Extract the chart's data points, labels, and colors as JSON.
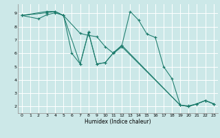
{
  "xlabel": "Humidex (Indice chaleur)",
  "xlim": [
    -0.5,
    23.5
  ],
  "ylim": [
    1.5,
    9.7
  ],
  "yticks": [
    2,
    3,
    4,
    5,
    6,
    7,
    8,
    9
  ],
  "xticks": [
    0,
    1,
    2,
    3,
    4,
    5,
    6,
    7,
    8,
    9,
    10,
    11,
    12,
    13,
    14,
    15,
    16,
    17,
    18,
    19,
    20,
    21,
    22,
    23
  ],
  "bg_color": "#cce8e8",
  "grid_color": "#ffffff",
  "line_color": "#1a7a6a",
  "line1_x": [
    0,
    2,
    3,
    4,
    5,
    7,
    8,
    9,
    10,
    11,
    12,
    19,
    20,
    21,
    22,
    23
  ],
  "line1_y": [
    8.85,
    8.6,
    8.9,
    9.05,
    8.85,
    7.5,
    7.35,
    7.25,
    6.5,
    6.0,
    6.5,
    2.1,
    2.05,
    2.2,
    2.45,
    2.2
  ],
  "line2_x": [
    0,
    3,
    4,
    5,
    6,
    7,
    8,
    9,
    10,
    11,
    12,
    13,
    14,
    15,
    16,
    17,
    18,
    19,
    20,
    21,
    22,
    23
  ],
  "line2_y": [
    8.85,
    9.05,
    9.15,
    8.85,
    6.0,
    5.2,
    7.55,
    5.2,
    5.3,
    6.05,
    6.6,
    9.15,
    8.5,
    7.45,
    7.2,
    5.0,
    4.1,
    2.1,
    2.0,
    2.2,
    2.45,
    2.2
  ],
  "line3_x": [
    0,
    3,
    4,
    5,
    7,
    8,
    9,
    10,
    11,
    12,
    19,
    20,
    21,
    22,
    23
  ],
  "line3_y": [
    8.85,
    9.15,
    9.15,
    8.85,
    5.2,
    7.6,
    5.2,
    5.3,
    6.05,
    6.6,
    2.1,
    2.0,
    2.2,
    2.45,
    2.2
  ]
}
